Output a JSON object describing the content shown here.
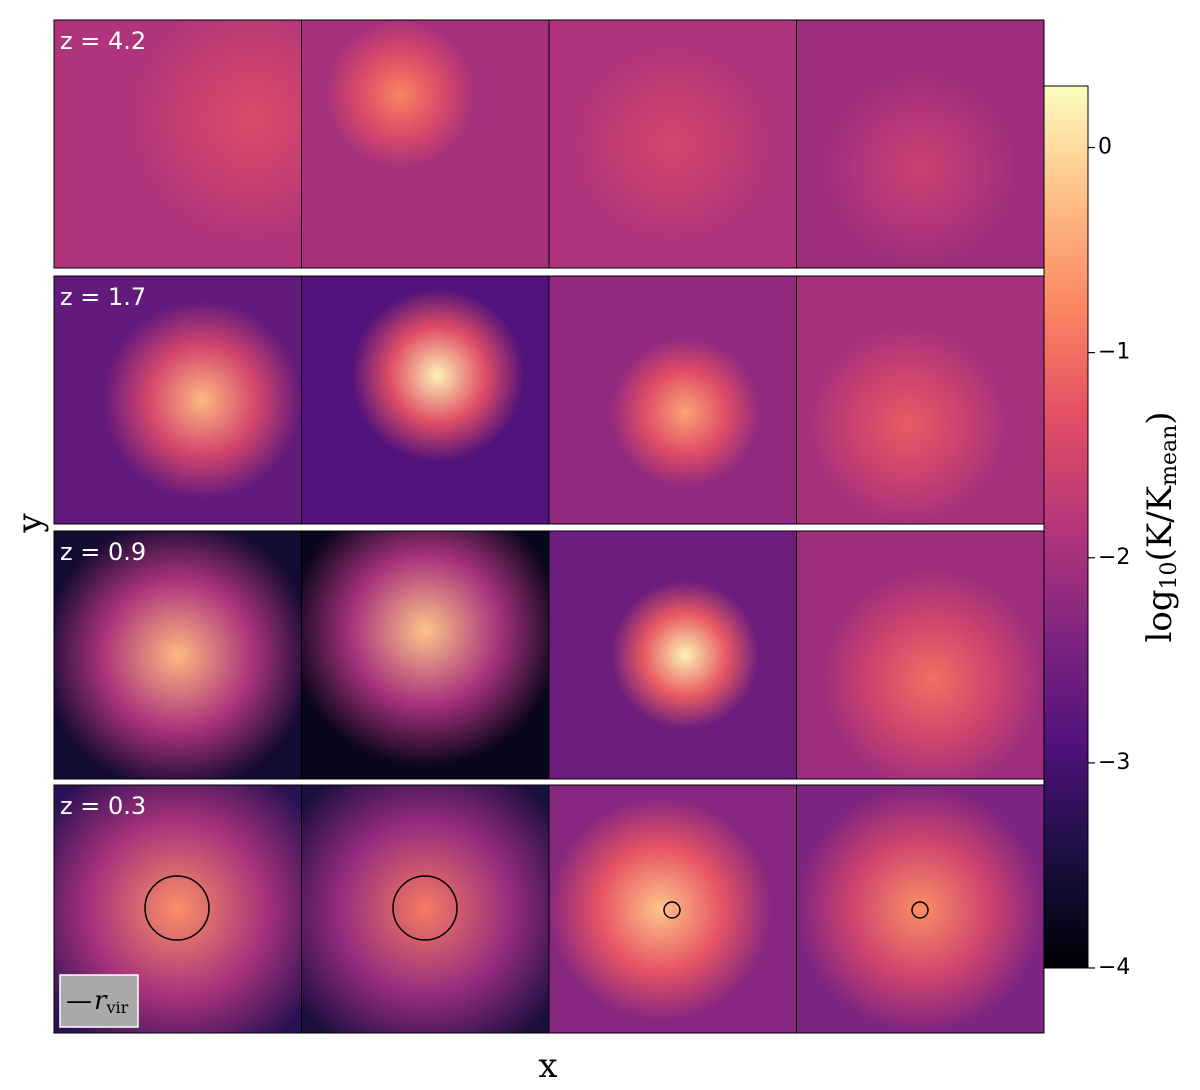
{
  "chart_data": {
    "type": "image_grid",
    "xlabel": "x",
    "ylabel": "y",
    "row_labels": [
      "z = 4.2",
      "z = 1.7",
      "z = 0.9",
      "z = 0.3"
    ],
    "colorbar": {
      "label_parts": [
        "log",
        "10",
        "(K/K",
        "mean",
        ")"
      ],
      "clim": [
        -4,
        0.3
      ],
      "ticks": [
        0,
        {
          "value": -1,
          "label": "−1"
        },
        {
          "value": -2,
          "label": "−2"
        },
        {
          "value": -3,
          "label": "−3"
        },
        {
          "value": -4,
          "label": "−4"
        }
      ],
      "colormap": "magma"
    },
    "legend": {
      "symbol": "—",
      "label": "r",
      "label_sub": "vir"
    }
  }
}
